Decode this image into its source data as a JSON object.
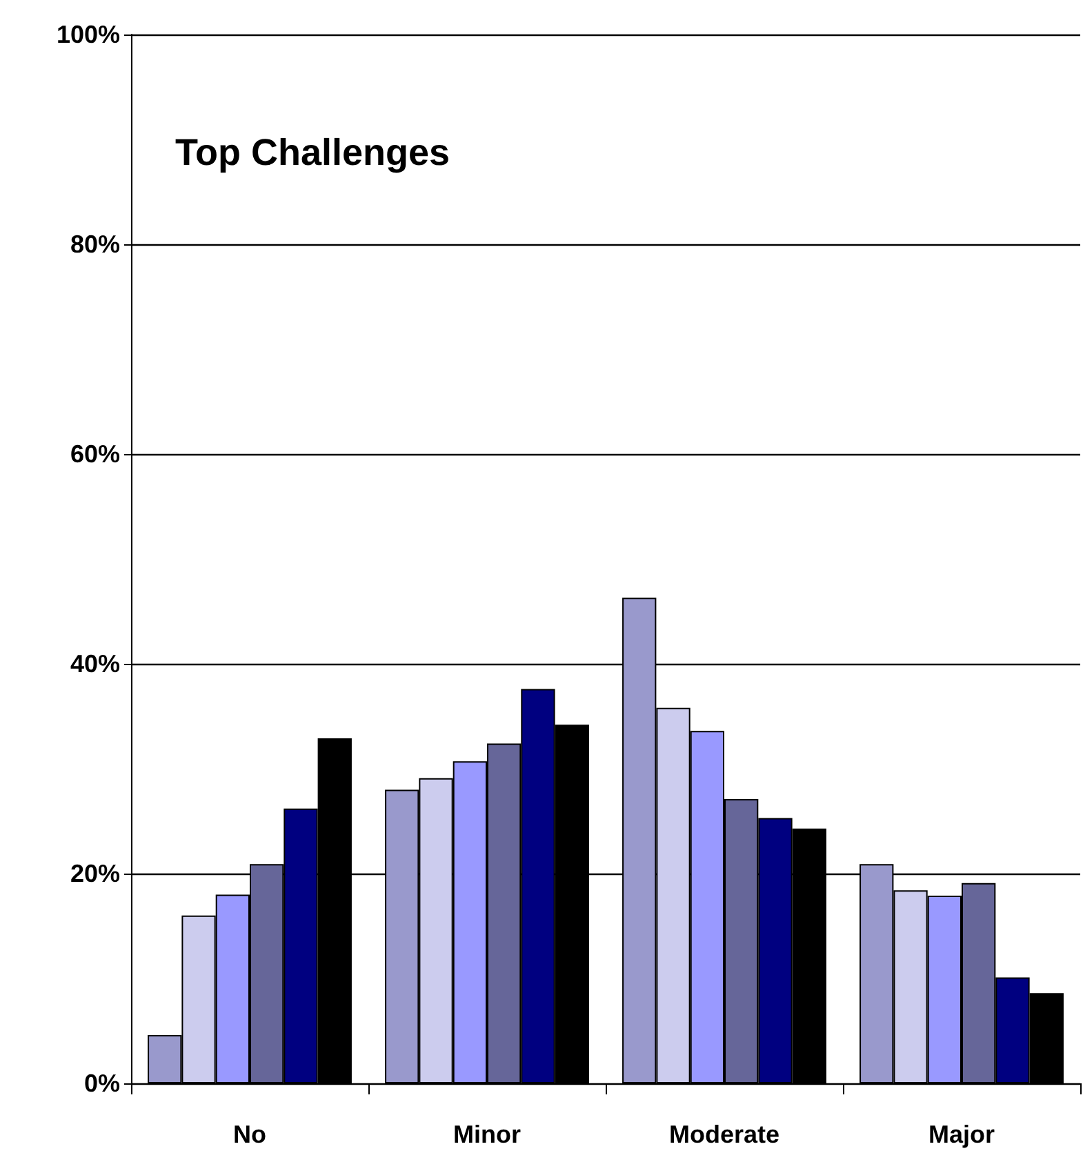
{
  "chart_data": {
    "type": "bar",
    "title": "Top Challenges",
    "categories": [
      "No",
      "Minor",
      "Moderate",
      "Major"
    ],
    "series": [
      {
        "color": "#9999cc",
        "values": [
          4.6,
          28,
          46.3,
          20.9
        ]
      },
      {
        "color": "#ccccee",
        "values": [
          16,
          29.1,
          35.8,
          18.4
        ]
      },
      {
        "color": "#9999ff",
        "values": [
          18,
          30.7,
          33.6,
          17.9
        ]
      },
      {
        "color": "#666699",
        "values": [
          20.9,
          32.4,
          27.1,
          19.1
        ]
      },
      {
        "color": "#000080",
        "values": [
          26.2,
          37.6,
          25.3,
          10.1
        ]
      },
      {
        "color": "#000000",
        "values": [
          32.9,
          34.2,
          24.3,
          8.6
        ]
      }
    ],
    "ylim": [
      0,
      100
    ],
    "yticks": [
      {
        "value": 0,
        "label": "0%"
      },
      {
        "value": 20,
        "label": "20%"
      },
      {
        "value": 40,
        "label": "40%"
      },
      {
        "value": 60,
        "label": "60%"
      },
      {
        "value": 80,
        "label": "80%"
      },
      {
        "value": 100,
        "label": "100%"
      }
    ],
    "grid": "y"
  }
}
